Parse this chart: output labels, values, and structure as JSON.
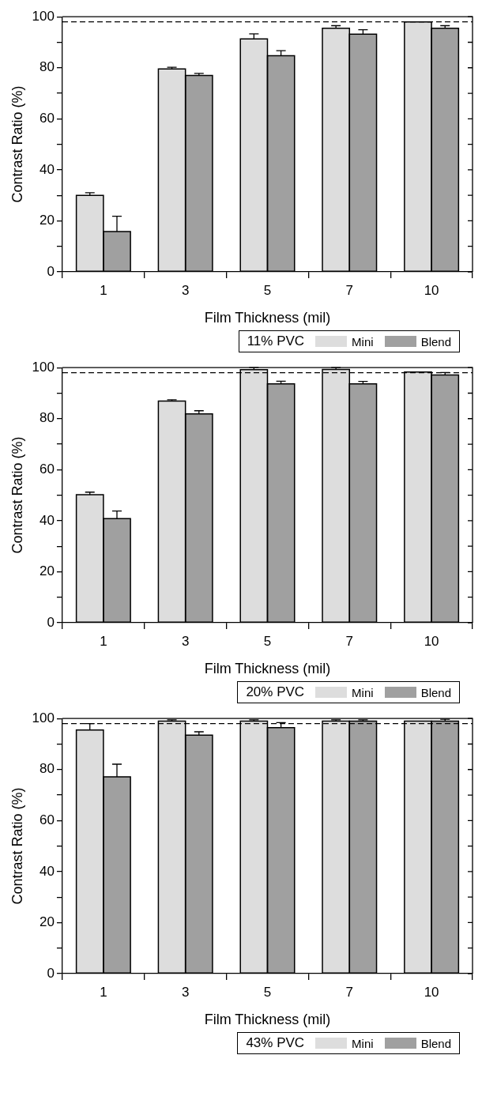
{
  "chart_data": [
    {
      "type": "bar",
      "xlabel": "Film Thickness (mil)",
      "ylabel": "Contrast Ratio (%)",
      "legend_title": "11% PVC",
      "legend": "bottom right",
      "categories": [
        "1",
        "3",
        "5",
        "7",
        "10"
      ],
      "ylim": [
        0,
        100
      ],
      "yticks": [
        0,
        {
          "value": 10,
          "label": null
        },
        20,
        {
          "value": 30,
          "label": null
        },
        40,
        {
          "value": 50,
          "label": null
        },
        60,
        {
          "value": 70,
          "label": null
        },
        80,
        {
          "value": 90,
          "label": null
        },
        100
      ],
      "series": [
        {
          "name": "Mini",
          "color": "#dddddd",
          "values": [
            30,
            79.5,
            91.3,
            95.5,
            98
          ],
          "errors": [
            1,
            0.7,
            2,
            1,
            null
          ]
        },
        {
          "name": "Blend",
          "color": "#a0a0a0",
          "values": [
            15.8,
            77,
            84.7,
            93.2,
            95.5
          ],
          "errors": [
            6,
            0.8,
            2,
            1.7,
            1
          ]
        }
      ],
      "ref_lines": [
        {
          "axis": "y",
          "value": 98,
          "color": "#000000",
          "line_style": "dashed"
        }
      ]
    },
    {
      "type": "bar",
      "xlabel": "Film Thickness (mil)",
      "ylabel": "Contrast Ratio (%)",
      "legend_title": "20% PVC",
      "legend": "bottom right",
      "categories": [
        "1",
        "3",
        "5",
        "7",
        "10"
      ],
      "ylim": [
        0,
        100
      ],
      "yticks": [
        0,
        {
          "value": 10,
          "label": null
        },
        20,
        {
          "value": 30,
          "label": null
        },
        40,
        {
          "value": 50,
          "label": null
        },
        60,
        {
          "value": 70,
          "label": null
        },
        80,
        {
          "value": 90,
          "label": null
        },
        100
      ],
      "series": [
        {
          "name": "Mini",
          "color": "#dddddd",
          "values": [
            50.2,
            86.9,
            99.2,
            99.3,
            98.3
          ],
          "errors": [
            1,
            0.5,
            0.8,
            0.7,
            null
          ]
        },
        {
          "name": "Blend",
          "color": "#a0a0a0",
          "values": [
            40.8,
            81.9,
            93.6,
            93.6,
            97.1
          ],
          "errors": [
            3,
            1.2,
            1.1,
            1,
            1
          ]
        }
      ],
      "ref_lines": [
        {
          "axis": "y",
          "value": 98,
          "color": "#000000",
          "line_style": "dashed"
        }
      ]
    },
    {
      "type": "bar",
      "xlabel": "Film Thickness (mil)",
      "ylabel": "Contrast Ratio (%)",
      "legend_title": "43% PVC",
      "legend": "bottom right",
      "categories": [
        "1",
        "3",
        "5",
        "7",
        "10"
      ],
      "ylim": [
        0,
        100
      ],
      "yticks": [
        0,
        {
          "value": 10,
          "label": null
        },
        20,
        {
          "value": 30,
          "label": null
        },
        40,
        {
          "value": 50,
          "label": null
        },
        60,
        {
          "value": 70,
          "label": null
        },
        80,
        {
          "value": 90,
          "label": null
        },
        100
      ],
      "series": [
        {
          "name": "Mini",
          "color": "#dddddd",
          "values": [
            95.5,
            99,
            99,
            99,
            99
          ],
          "errors": [
            2.5,
            0.5,
            0.5,
            0.5,
            null
          ]
        },
        {
          "name": "Blend",
          "color": "#a0a0a0",
          "values": [
            77.1,
            93.5,
            96.4,
            99,
            99
          ],
          "errors": [
            5,
            1.3,
            2,
            0.5,
            0.7
          ]
        }
      ],
      "ref_lines": [
        {
          "axis": "y",
          "value": 98,
          "color": "#000000",
          "line_style": "dashed"
        }
      ]
    }
  ]
}
